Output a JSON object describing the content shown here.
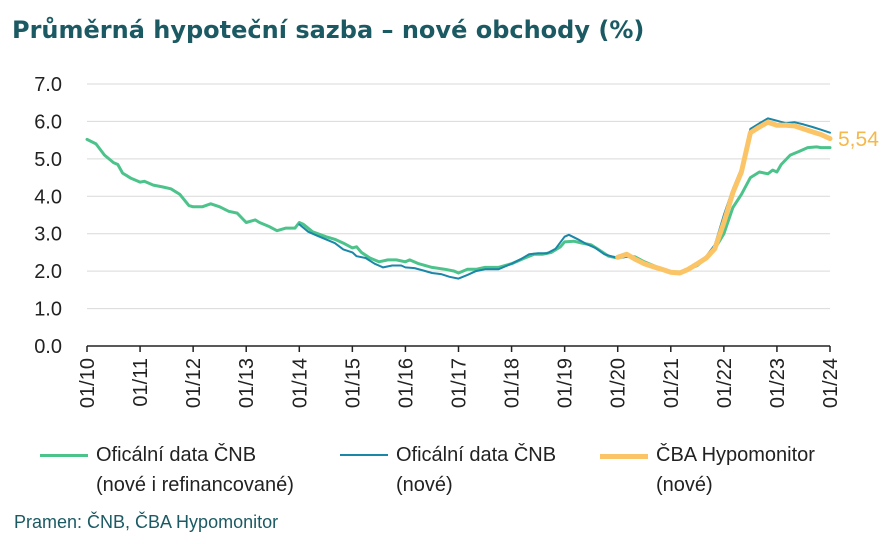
{
  "title": "Průměrná hypoteční sazba – nové obchody (%)",
  "source": "Pramen: ČNB, ČBA Hypomonitor",
  "chart_data": {
    "type": "line",
    "title": "Průměrná hypoteční sazba – nové obchody (%)",
    "xlabel": "",
    "ylabel": "",
    "ylim": [
      0,
      7
    ],
    "yticks": [
      "0.0",
      "1.0",
      "2.0",
      "3.0",
      "4.0",
      "5.0",
      "6.0",
      "7.0"
    ],
    "xticks": [
      "01/10",
      "01/11",
      "01/12",
      "01/13",
      "01/14",
      "01/15",
      "01/16",
      "01/17",
      "01/18",
      "01/19",
      "01/20",
      "01/21",
      "01/22",
      "01/23",
      "01/24"
    ],
    "grid": "horizontal",
    "legend_position": "bottom",
    "end_label": "5,54",
    "series": [
      {
        "name": "Oficální data ČNB (nové i refinancované)",
        "legend_lines": [
          "Oficální data ČNB",
          "(nové i refinancované)"
        ],
        "color": "#4cc38a",
        "width": 3,
        "points": [
          [
            2010.0,
            5.52
          ],
          [
            2010.17,
            5.4
          ],
          [
            2010.33,
            5.1
          ],
          [
            2010.5,
            4.9
          ],
          [
            2010.58,
            4.85
          ],
          [
            2010.67,
            4.62
          ],
          [
            2010.83,
            4.48
          ],
          [
            2011.0,
            4.38
          ],
          [
            2011.08,
            4.4
          ],
          [
            2011.25,
            4.3
          ],
          [
            2011.42,
            4.25
          ],
          [
            2011.58,
            4.2
          ],
          [
            2011.75,
            4.05
          ],
          [
            2011.92,
            3.75
          ],
          [
            2012.0,
            3.72
          ],
          [
            2012.17,
            3.72
          ],
          [
            2012.33,
            3.8
          ],
          [
            2012.5,
            3.72
          ],
          [
            2012.67,
            3.6
          ],
          [
            2012.83,
            3.55
          ],
          [
            2013.0,
            3.3
          ],
          [
            2013.17,
            3.37
          ],
          [
            2013.25,
            3.3
          ],
          [
            2013.42,
            3.2
          ],
          [
            2013.58,
            3.08
          ],
          [
            2013.75,
            3.15
          ],
          [
            2013.92,
            3.15
          ],
          [
            2014.0,
            3.3
          ],
          [
            2014.08,
            3.25
          ],
          [
            2014.25,
            3.05
          ],
          [
            2014.5,
            2.92
          ],
          [
            2014.67,
            2.85
          ],
          [
            2014.83,
            2.75
          ],
          [
            2015.0,
            2.62
          ],
          [
            2015.08,
            2.65
          ],
          [
            2015.17,
            2.5
          ],
          [
            2015.33,
            2.35
          ],
          [
            2015.5,
            2.25
          ],
          [
            2015.67,
            2.3
          ],
          [
            2015.83,
            2.3
          ],
          [
            2016.0,
            2.25
          ],
          [
            2016.08,
            2.3
          ],
          [
            2016.25,
            2.2
          ],
          [
            2016.5,
            2.1
          ],
          [
            2016.75,
            2.05
          ],
          [
            2016.92,
            2.0
          ],
          [
            2017.0,
            1.95
          ],
          [
            2017.17,
            2.05
          ],
          [
            2017.33,
            2.05
          ],
          [
            2017.5,
            2.1
          ],
          [
            2017.75,
            2.1
          ],
          [
            2018.0,
            2.2
          ],
          [
            2018.25,
            2.35
          ],
          [
            2018.42,
            2.45
          ],
          [
            2018.58,
            2.45
          ],
          [
            2018.75,
            2.5
          ],
          [
            2018.92,
            2.65
          ],
          [
            2019.0,
            2.78
          ],
          [
            2019.17,
            2.8
          ],
          [
            2019.33,
            2.75
          ],
          [
            2019.5,
            2.7
          ],
          [
            2019.67,
            2.55
          ],
          [
            2019.83,
            2.4
          ],
          [
            2020.0,
            2.35
          ],
          [
            2020.17,
            2.4
          ],
          [
            2020.33,
            2.38
          ],
          [
            2020.5,
            2.25
          ],
          [
            2020.67,
            2.15
          ],
          [
            2020.83,
            2.05
          ],
          [
            2021.0,
            1.98
          ],
          [
            2021.17,
            1.98
          ],
          [
            2021.33,
            2.05
          ],
          [
            2021.5,
            2.15
          ],
          [
            2021.67,
            2.35
          ],
          [
            2021.83,
            2.6
          ],
          [
            2022.0,
            3.0
          ],
          [
            2022.17,
            3.7
          ],
          [
            2022.33,
            4.05
          ],
          [
            2022.5,
            4.5
          ],
          [
            2022.67,
            4.65
          ],
          [
            2022.83,
            4.6
          ],
          [
            2022.92,
            4.7
          ],
          [
            2023.0,
            4.65
          ],
          [
            2023.08,
            4.85
          ],
          [
            2023.25,
            5.1
          ],
          [
            2023.42,
            5.2
          ],
          [
            2023.58,
            5.3
          ],
          [
            2023.75,
            5.32
          ],
          [
            2023.83,
            5.3
          ],
          [
            2024.0,
            5.3
          ]
        ]
      },
      {
        "name": "Oficální data ČNB (nové)",
        "legend_lines": [
          "Oficální data ČNB",
          "(nové)"
        ],
        "color": "#1a86a8",
        "width": 2,
        "points": [
          [
            2014.0,
            3.25
          ],
          [
            2014.17,
            3.05
          ],
          [
            2014.33,
            2.95
          ],
          [
            2014.5,
            2.85
          ],
          [
            2014.67,
            2.75
          ],
          [
            2014.83,
            2.58
          ],
          [
            2015.0,
            2.5
          ],
          [
            2015.08,
            2.4
          ],
          [
            2015.25,
            2.35
          ],
          [
            2015.42,
            2.2
          ],
          [
            2015.58,
            2.1
          ],
          [
            2015.75,
            2.15
          ],
          [
            2015.92,
            2.15
          ],
          [
            2016.0,
            2.1
          ],
          [
            2016.17,
            2.08
          ],
          [
            2016.33,
            2.02
          ],
          [
            2016.5,
            1.95
          ],
          [
            2016.67,
            1.92
          ],
          [
            2016.83,
            1.85
          ],
          [
            2017.0,
            1.8
          ],
          [
            2017.17,
            1.9
          ],
          [
            2017.33,
            2.0
          ],
          [
            2017.5,
            2.05
          ],
          [
            2017.75,
            2.05
          ],
          [
            2018.0,
            2.2
          ],
          [
            2018.17,
            2.32
          ],
          [
            2018.33,
            2.45
          ],
          [
            2018.5,
            2.48
          ],
          [
            2018.67,
            2.48
          ],
          [
            2018.83,
            2.6
          ],
          [
            2019.0,
            2.92
          ],
          [
            2019.08,
            2.97
          ],
          [
            2019.25,
            2.85
          ],
          [
            2019.42,
            2.72
          ],
          [
            2019.58,
            2.62
          ],
          [
            2019.75,
            2.45
          ],
          [
            2019.92,
            2.38
          ],
          [
            2020.0,
            2.35
          ],
          [
            2020.17,
            2.38
          ],
          [
            2020.33,
            2.35
          ],
          [
            2020.5,
            2.22
          ],
          [
            2020.67,
            2.12
          ],
          [
            2020.83,
            2.05
          ],
          [
            2021.0,
            1.95
          ],
          [
            2021.17,
            1.95
          ],
          [
            2021.33,
            2.05
          ],
          [
            2021.5,
            2.2
          ],
          [
            2021.67,
            2.4
          ],
          [
            2021.83,
            2.7
          ],
          [
            2022.0,
            3.5
          ],
          [
            2022.17,
            4.2
          ],
          [
            2022.33,
            4.75
          ],
          [
            2022.5,
            5.8
          ],
          [
            2022.67,
            5.95
          ],
          [
            2022.83,
            6.08
          ],
          [
            2023.0,
            6.02
          ],
          [
            2023.17,
            5.95
          ],
          [
            2023.33,
            5.98
          ],
          [
            2023.5,
            5.92
          ],
          [
            2023.67,
            5.85
          ],
          [
            2023.83,
            5.78
          ],
          [
            2024.0,
            5.7
          ]
        ]
      },
      {
        "name": "ČBA Hypomonitor (nové)",
        "legend_lines": [
          "ČBA Hypomonitor",
          "(nové)"
        ],
        "color": "#fbc466",
        "width": 5,
        "points": [
          [
            2020.0,
            2.37
          ],
          [
            2020.17,
            2.45
          ],
          [
            2020.33,
            2.32
          ],
          [
            2020.5,
            2.2
          ],
          [
            2020.67,
            2.12
          ],
          [
            2020.83,
            2.05
          ],
          [
            2021.0,
            1.97
          ],
          [
            2021.17,
            1.95
          ],
          [
            2021.33,
            2.05
          ],
          [
            2021.5,
            2.2
          ],
          [
            2021.67,
            2.35
          ],
          [
            2021.83,
            2.6
          ],
          [
            2022.0,
            3.3
          ],
          [
            2022.17,
            4.1
          ],
          [
            2022.33,
            4.65
          ],
          [
            2022.5,
            5.7
          ],
          [
            2022.67,
            5.85
          ],
          [
            2022.83,
            5.98
          ],
          [
            2023.0,
            5.9
          ],
          [
            2023.17,
            5.9
          ],
          [
            2023.33,
            5.88
          ],
          [
            2023.5,
            5.8
          ],
          [
            2023.67,
            5.72
          ],
          [
            2023.83,
            5.65
          ],
          [
            2024.0,
            5.54
          ]
        ]
      }
    ]
  }
}
